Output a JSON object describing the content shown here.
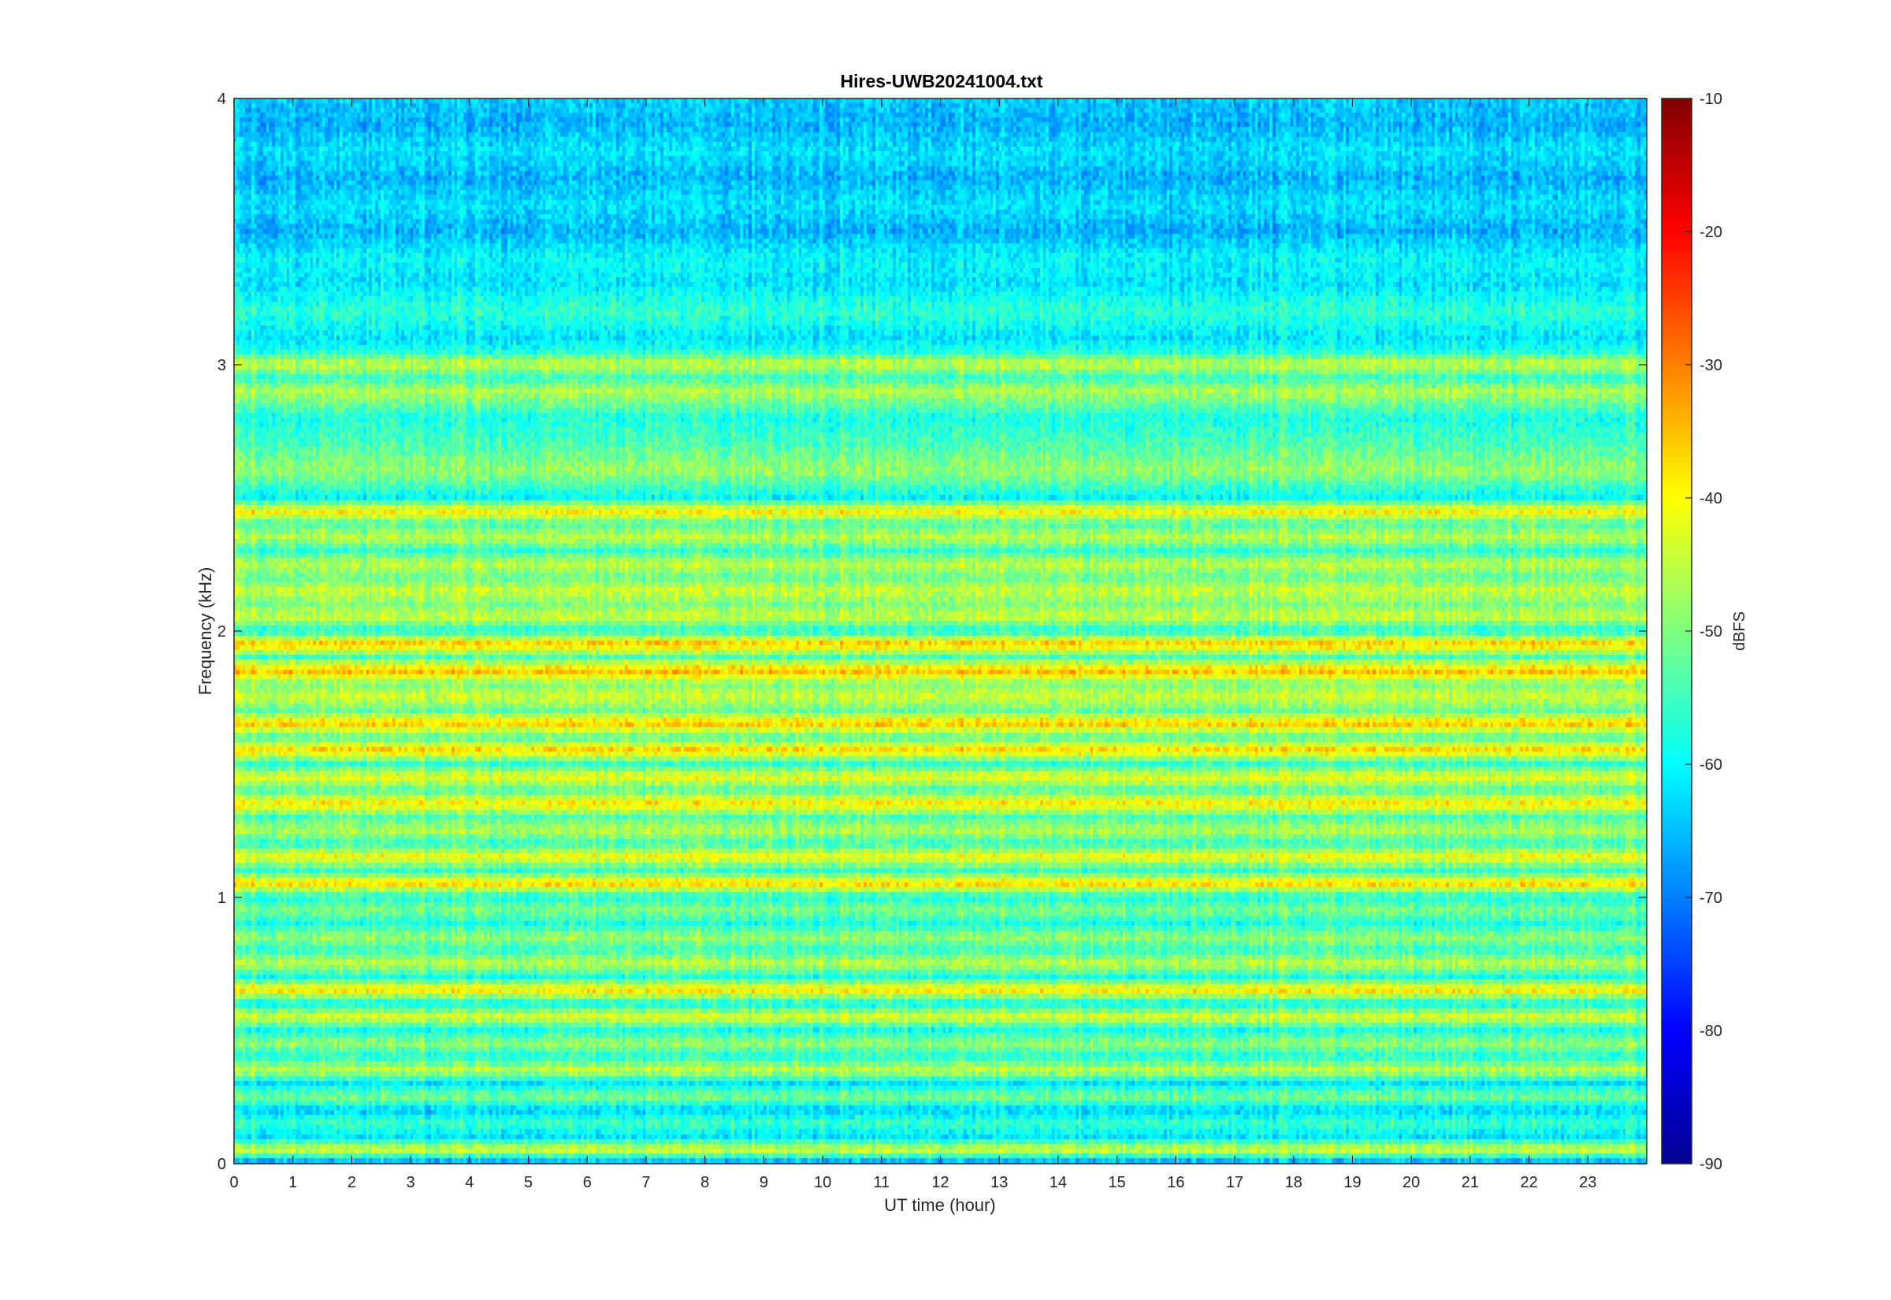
{
  "chart_data": {
    "type": "heatmap",
    "title": "Hires-UWB20241004.txt",
    "xlabel": "UT time (hour)",
    "ylabel": "Frequency (kHz)",
    "colorbar_label": "dBFS",
    "xlim": [
      0,
      24
    ],
    "ylim": [
      0,
      4
    ],
    "clim": [
      -90,
      -10
    ],
    "colormap": "jet",
    "x_ticks": [
      "0",
      "1",
      "2",
      "3",
      "4",
      "5",
      "6",
      "7",
      "8",
      "9",
      "10",
      "11",
      "12",
      "13",
      "14",
      "15",
      "16",
      "17",
      "18",
      "19",
      "20",
      "21",
      "22",
      "23"
    ],
    "y_ticks": [
      "0",
      "1",
      "2",
      "3",
      "4"
    ],
    "colorbar_ticks": [
      "-90",
      "-80",
      "-70",
      "-60",
      "-50",
      "-40",
      "-30",
      "-20",
      "-10"
    ],
    "grid": false,
    "frequency_band_profile_dBFS": {
      "freq_kHz": [
        0.0,
        0.05,
        0.1,
        0.15,
        0.2,
        0.25,
        0.3,
        0.35,
        0.4,
        0.45,
        0.5,
        0.55,
        0.6,
        0.65,
        0.7,
        0.75,
        0.8,
        0.85,
        0.9,
        0.95,
        1.0,
        1.05,
        1.1,
        1.15,
        1.2,
        1.25,
        1.3,
        1.35,
        1.4,
        1.45,
        1.5,
        1.55,
        1.6,
        1.65,
        1.7,
        1.75,
        1.8,
        1.85,
        1.9,
        1.95,
        2.0,
        2.05,
        2.1,
        2.15,
        2.2,
        2.25,
        2.3,
        2.35,
        2.4,
        2.45,
        2.5,
        2.6,
        2.7,
        2.8,
        2.9,
        2.95,
        3.0,
        3.05,
        3.1,
        3.2,
        3.3,
        3.4,
        3.5,
        3.6,
        3.7,
        3.8,
        3.9,
        4.0
      ],
      "level_dBFS": [
        -70,
        -42,
        -62,
        -55,
        -64,
        -50,
        -62,
        -44,
        -58,
        -48,
        -58,
        -42,
        -60,
        -37,
        -58,
        -45,
        -56,
        -48,
        -58,
        -50,
        -58,
        -36,
        -56,
        -40,
        -56,
        -46,
        -54,
        -38,
        -54,
        -41,
        -56,
        -36,
        -54,
        -35,
        -52,
        -44,
        -50,
        -34,
        -54,
        -35,
        -58,
        -44,
        -50,
        -44,
        -52,
        -45,
        -56,
        -45,
        -54,
        -38,
        -60,
        -48,
        -54,
        -58,
        -46,
        -56,
        -44,
        -58,
        -62,
        -56,
        -62,
        -60,
        -66,
        -62,
        -66,
        -62,
        -66,
        -64
      ]
    }
  }
}
